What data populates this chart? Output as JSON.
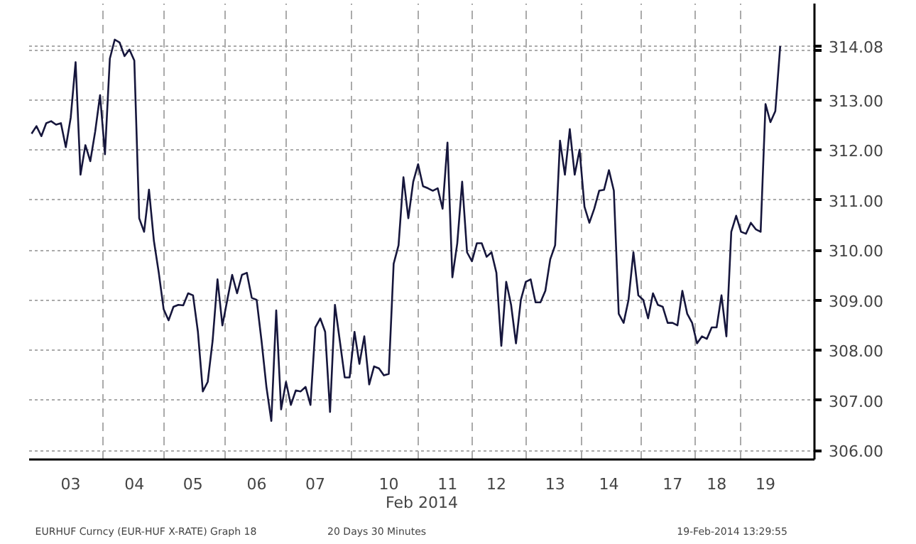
{
  "chart_data": {
    "type": "line",
    "xlabel": "Feb 2014",
    "annotations": [
      "EURHUF Curncy (EUR-HUF X-RATE) Graph 18",
      "20 Days 30 Minutes",
      "19-Feb-2014 13:29:55"
    ],
    "categories": [
      null,
      null,
      null,
      null,
      null,
      null,
      null,
      null,
      "03",
      null,
      null,
      null,
      null,
      null,
      null,
      null,
      null,
      null,
      null,
      null,
      null,
      "04",
      null,
      null,
      null,
      null,
      null,
      null,
      null,
      null,
      null,
      null,
      null,
      "05",
      null,
      null,
      null,
      null,
      null,
      null,
      null,
      null,
      null,
      null,
      null,
      null,
      "06",
      null,
      null,
      null,
      null,
      null,
      null,
      null,
      null,
      null,
      null,
      null,
      "07",
      null,
      null,
      null,
      null,
      null,
      null,
      null,
      null,
      null,
      null,
      null,
      null,
      null,
      null,
      "10",
      null,
      null,
      null,
      null,
      null,
      null,
      null,
      null,
      null,
      null,
      null,
      "11",
      null,
      null,
      null,
      null,
      null,
      null,
      null,
      null,
      null,
      "12",
      null,
      null,
      null,
      null,
      null,
      null,
      null,
      null,
      null,
      null,
      null,
      "13",
      null,
      null,
      null,
      null,
      null,
      null,
      null,
      null,
      null,
      null,
      "14",
      null,
      null,
      null,
      null,
      null,
      null,
      null,
      null,
      null,
      null,
      null,
      null,
      "17",
      null,
      null,
      null,
      null,
      null,
      null,
      null,
      null,
      "18",
      null,
      null,
      null,
      null,
      null,
      null,
      null,
      null,
      null,
      "19",
      null,
      null,
      null
    ],
    "series": [
      {
        "color": "#16163c",
        "values": [
          312.33,
          312.48,
          312.28,
          312.54,
          312.58,
          312.51,
          312.54,
          312.06,
          312.65,
          313.76,
          311.51,
          312.1,
          311.78,
          312.37,
          313.1,
          311.92,
          313.83,
          314.21,
          314.15,
          313.88,
          314.01,
          313.79,
          310.64,
          310.37,
          311.21,
          310.19,
          309.55,
          308.82,
          308.6,
          308.87,
          308.91,
          308.9,
          309.14,
          309.1,
          308.37,
          307.18,
          307.37,
          308.19,
          309.42,
          308.5,
          309.01,
          309.51,
          309.14,
          309.51,
          309.55,
          309.05,
          309.01,
          308.19,
          307.27,
          306.59,
          308.8,
          306.82,
          307.37,
          306.91,
          307.2,
          307.18,
          307.27,
          306.91,
          308.46,
          308.64,
          308.37,
          306.77,
          308.91,
          308.19,
          307.46,
          307.46,
          308.37,
          307.73,
          308.28,
          307.32,
          307.68,
          307.64,
          307.5,
          307.53,
          309.73,
          310.1,
          311.46,
          310.64,
          311.37,
          311.72,
          311.28,
          311.24,
          311.19,
          311.24,
          310.83,
          312.15,
          309.46,
          310.14,
          311.37,
          309.96,
          309.78,
          310.14,
          310.14,
          309.87,
          309.96,
          309.55,
          308.09,
          309.37,
          308.91,
          308.14,
          309.01,
          309.37,
          309.42,
          308.96,
          308.96,
          309.19,
          309.82,
          310.1,
          312.19,
          311.51,
          312.42,
          311.51,
          312.01,
          310.87,
          310.55,
          310.83,
          311.19,
          311.21,
          311.6,
          311.19,
          308.73,
          308.55,
          309.01,
          309.96,
          309.1,
          309.01,
          308.64,
          309.14,
          308.91,
          308.87,
          308.55,
          308.55,
          308.5,
          309.19,
          308.73,
          308.55,
          308.14,
          308.28,
          308.23,
          308.46,
          308.46,
          309.1,
          308.28,
          310.37,
          310.69,
          310.37,
          310.33,
          310.55,
          310.42,
          310.37,
          312.92,
          312.56,
          312.78,
          314.08
        ]
      }
    ],
    "ylim": [
      305.82,
      314.93
    ],
    "yticks": [
      {
        "value": 306,
        "label": "306.00"
      },
      {
        "value": 307,
        "label": "307.00"
      },
      {
        "value": 308,
        "label": "308.00"
      },
      {
        "value": 309,
        "label": "309.00"
      },
      {
        "value": 310,
        "label": "310.00"
      },
      {
        "value": 311,
        "label": "311.00"
      },
      {
        "value": 312,
        "label": "312.00"
      },
      {
        "value": 313,
        "label": "313.00"
      },
      {
        "value": 314,
        "label": null
      },
      {
        "value": 314.08,
        "label": "314.08"
      }
    ],
    "grid": true,
    "line_style": "solid"
  }
}
